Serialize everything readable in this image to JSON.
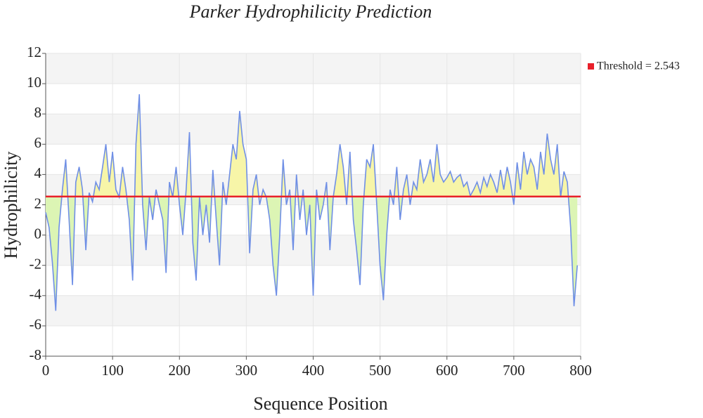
{
  "chart_data": {
    "type": "line",
    "title": "Parker Hydrophilicity Prediction",
    "xlabel": "Sequence Position",
    "ylabel": "Hydrophilicity",
    "x": [
      0,
      5,
      10,
      15,
      20,
      25,
      30,
      35,
      40,
      45,
      50,
      55,
      60,
      65,
      70,
      75,
      80,
      85,
      90,
      95,
      100,
      105,
      110,
      115,
      120,
      125,
      130,
      135,
      140,
      145,
      150,
      155,
      160,
      165,
      170,
      175,
      180,
      185,
      190,
      195,
      200,
      205,
      210,
      215,
      220,
      225,
      230,
      235,
      240,
      245,
      250,
      255,
      260,
      265,
      270,
      275,
      280,
      285,
      290,
      295,
      300,
      305,
      310,
      315,
      320,
      325,
      330,
      335,
      340,
      345,
      350,
      355,
      360,
      365,
      370,
      375,
      380,
      385,
      390,
      395,
      400,
      405,
      410,
      415,
      420,
      425,
      430,
      435,
      440,
      445,
      450,
      455,
      460,
      465,
      470,
      475,
      480,
      485,
      490,
      495,
      500,
      505,
      510,
      515,
      520,
      525,
      530,
      535,
      540,
      545,
      550,
      555,
      560,
      565,
      570,
      575,
      580,
      585,
      590,
      595,
      600,
      605,
      610,
      615,
      620,
      625,
      630,
      635,
      640,
      645,
      650,
      655,
      660,
      665,
      670,
      675,
      680,
      685,
      690,
      695,
      700,
      705,
      710,
      715,
      720,
      725,
      730,
      735,
      740,
      745,
      750,
      755,
      760,
      765,
      770,
      775,
      780,
      785,
      790,
      795
    ],
    "values": [
      1.5,
      0.5,
      -1.8,
      -5,
      0.5,
      3,
      5,
      1,
      -3.3,
      3.5,
      4.5,
      3,
      -1,
      2.8,
      2.2,
      3.5,
      3,
      4.5,
      6,
      3.5,
      5.5,
      3,
      2.5,
      4.5,
      3,
      1,
      -3,
      6,
      9.3,
      2,
      -1,
      2.5,
      1,
      3,
      2,
      1,
      -2.5,
      3.5,
      2.5,
      4.5,
      2,
      0,
      3,
      6.8,
      -0.5,
      -3,
      2.5,
      0,
      2,
      -0.5,
      4.3,
      1,
      -2,
      3.5,
      2,
      4,
      6,
      5,
      8.2,
      6,
      5,
      -1.2,
      3,
      4,
      2,
      3,
      2.5,
      1,
      -2,
      -4,
      0,
      5,
      2,
      3,
      -1,
      4,
      1,
      3,
      0,
      2,
      -4,
      3,
      1,
      2,
      3.5,
      -1,
      2.5,
      4,
      6,
      4.5,
      2,
      5.5,
      1,
      -1,
      -3.3,
      2,
      5,
      4.5,
      6,
      2,
      -2,
      -4.3,
      0,
      3,
      2,
      4.5,
      1,
      3,
      4,
      2,
      3.5,
      3,
      5,
      3.5,
      4,
      5,
      3.5,
      6,
      4,
      3.5,
      3.8,
      4.2,
      3.5,
      3.8,
      4,
      3.2,
      3.5,
      2.6,
      3,
      3.5,
      2.8,
      3.8,
      3.2,
      4,
      3.5,
      2.8,
      4.3,
      3,
      4.5,
      3.5,
      2,
      4.8,
      3,
      5.5,
      4,
      5,
      4.5,
      3,
      5.5,
      4,
      6.7,
      5,
      4,
      6,
      2.5,
      4.2,
      3.5,
      0.5,
      -4.7,
      -2
    ],
    "color": "#6f8fe6",
    "fill_above": "#f7f5a8",
    "fill_below": "#dcf5b4",
    "threshold": {
      "name": "Threshold = 2.543",
      "value": 2.543,
      "color": "#e8202a"
    },
    "xlim": [
      0,
      800
    ],
    "ylim": [
      -8,
      12
    ],
    "xticks": [
      0,
      100,
      200,
      300,
      400,
      500,
      600,
      700,
      800
    ],
    "yticks": [
      -8,
      -6,
      -4,
      -2,
      0,
      2,
      4,
      6,
      8,
      10,
      12
    ],
    "grid": true
  }
}
